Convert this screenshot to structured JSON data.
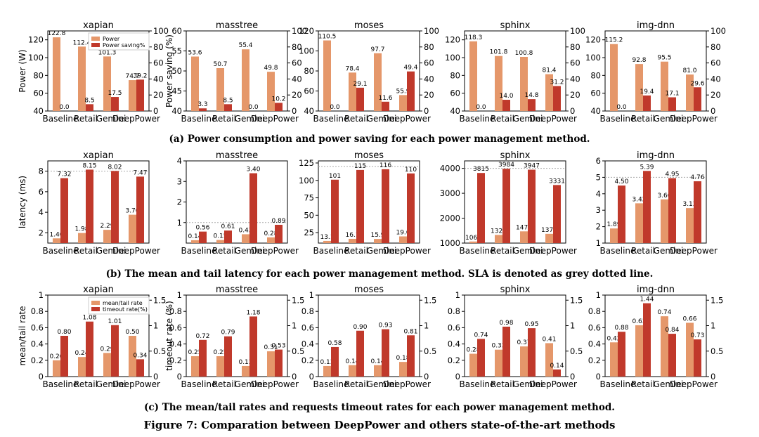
{
  "colors": {
    "light": "#e5976a",
    "dark": "#c0392b",
    "sla": "#aaaaaa",
    "axis": "#000000"
  },
  "captions": {
    "a": "(a) Power consumption and power saving for each power management method.",
    "b": "(b) The mean and tail latency for each power management method. SLA is denoted as grey dotted line.",
    "c": "(c) The mean/tail rates and requests timeout rates for each power management method.",
    "figure": "Figure 7: Comparation between DeepPower and others state-of-the-art methods"
  },
  "chart_data": [
    {
      "group": "a",
      "type": "bar",
      "y_label": "Power (W)",
      "y2_label": "Power saving (%)",
      "legend": [
        "Power",
        "Power saving%"
      ],
      "categories": [
        "Baseline",
        "Retail",
        "Gemini",
        "DeepPower"
      ],
      "panels": [
        {
          "title": "xapian",
          "ylim": [
            40,
            130
          ],
          "yticks": [
            40,
            60,
            80,
            100,
            120
          ],
          "y2lim": [
            0,
            100
          ],
          "y2ticks": [
            0,
            20,
            40,
            60,
            80,
            100
          ],
          "light": [
            122.8,
            112.4,
            101.3,
            74.7
          ],
          "dark": [
            0.0,
            8.5,
            17.5,
            39.2
          ],
          "light_labels": [
            "122.8",
            "112.4",
            "101.3",
            "74.7"
          ],
          "dark_labels": [
            "0.0",
            "8.5",
            "17.5",
            "39.2"
          ]
        },
        {
          "title": "masstree",
          "ylim": [
            40,
            60
          ],
          "yticks": [
            40,
            45,
            50,
            55,
            60
          ],
          "y2lim": [
            0,
            100
          ],
          "y2ticks": [
            0,
            20,
            40,
            60,
            80,
            100
          ],
          "light": [
            53.6,
            50.7,
            55.4,
            49.8
          ],
          "dark": [
            3.3,
            8.5,
            0.0,
            10.2
          ],
          "light_labels": [
            "53.6",
            "50.7",
            "55.4",
            "49.8"
          ],
          "dark_labels": [
            "3.3",
            "8.5",
            "0.0",
            "10.2"
          ]
        },
        {
          "title": "moses",
          "ylim": [
            40,
            120
          ],
          "yticks": [
            40,
            60,
            80,
            100,
            120
          ],
          "y2lim": [
            0,
            100
          ],
          "y2ticks": [
            0,
            20,
            40,
            60,
            80,
            100
          ],
          "light": [
            110.5,
            78.4,
            97.7,
            55.9
          ],
          "dark": [
            0.0,
            29.1,
            11.6,
            49.4
          ],
          "light_labels": [
            "110.5",
            "78.4",
            "97.7",
            "55.9"
          ],
          "dark_labels": [
            "0.0",
            "29.1",
            "11.6",
            "49.4"
          ]
        },
        {
          "title": "sphinx",
          "ylim": [
            40,
            130
          ],
          "yticks": [
            40,
            60,
            80,
            100,
            120
          ],
          "y2lim": [
            0,
            100
          ],
          "y2ticks": [
            0,
            20,
            40,
            60,
            80,
            100
          ],
          "light": [
            118.3,
            101.8,
            100.8,
            81.4
          ],
          "dark": [
            0.0,
            14.0,
            14.8,
            31.2
          ],
          "light_labels": [
            "118.3",
            "101.8",
            "100.8",
            "81.4"
          ],
          "dark_labels": [
            "0.0",
            "14.0",
            "14.8",
            "31.2"
          ]
        },
        {
          "title": "img-dnn",
          "ylim": [
            40,
            130
          ],
          "yticks": [
            40,
            60,
            80,
            100,
            120
          ],
          "y2lim": [
            0,
            100
          ],
          "y2ticks": [
            0,
            20,
            40,
            60,
            80,
            100
          ],
          "light": [
            115.2,
            92.8,
            95.5,
            81.0
          ],
          "dark": [
            0.0,
            19.4,
            17.1,
            29.6
          ],
          "light_labels": [
            "115.2",
            "92.8",
            "95.5",
            "81.0"
          ],
          "dark_labels": [
            "0.0",
            "19.4",
            "17.1",
            "29.6"
          ]
        }
      ]
    },
    {
      "group": "b",
      "type": "bar",
      "y_label": "latency (ms)",
      "categories": [
        "Baseline",
        "Retail",
        "Gemini",
        "DeepPower"
      ],
      "panels": [
        {
          "title": "xapian",
          "ylim": [
            1,
            9
          ],
          "yticks": [
            2,
            4,
            6,
            8
          ],
          "sla": 8,
          "light": [
            1.46,
            1.98,
            2.29,
            3.76
          ],
          "dark": [
            7.32,
            8.15,
            8.02,
            7.47
          ],
          "light_labels": [
            "1.46",
            "1.98",
            "2.29",
            "3.76"
          ],
          "dark_labels": [
            "7.32",
            "8.15",
            "8.02",
            "7.47"
          ]
        },
        {
          "title": "masstree",
          "ylim": [
            0,
            4
          ],
          "yticks": [
            1,
            2,
            3,
            4
          ],
          "sla": 1,
          "light": [
            0.14,
            0.15,
            0.43,
            0.28
          ],
          "dark": [
            0.56,
            0.61,
            3.4,
            0.89
          ],
          "light_labels": [
            "0.14",
            "0.15",
            "0.43",
            "0.28"
          ],
          "dark_labels": [
            "0.56",
            "0.61",
            "3.40",
            "0.89"
          ]
        },
        {
          "title": "moses",
          "ylim": [
            10,
            128
          ],
          "yticks": [
            25,
            50,
            75,
            100,
            125
          ],
          "sla": 120,
          "light": [
            13.1,
            16.1,
            15.9,
            19.6
          ],
          "dark": [
            101,
            115,
            116,
            110
          ],
          "light_labels": [
            "13.1",
            "16.1",
            "15.9",
            "19.6"
          ],
          "dark_labels": [
            "101",
            "115",
            "116",
            "110"
          ]
        },
        {
          "title": "sphinx",
          "ylim": [
            1000,
            4300
          ],
          "yticks": [
            1000,
            2000,
            3000,
            4000
          ],
          "sla": 4000,
          "light": [
            1063,
            1327,
            1471,
            1371
          ],
          "dark": [
            3815,
            3984,
            3947,
            3331
          ],
          "light_labels": [
            "1063",
            "1327",
            "1471",
            "1371"
          ],
          "dark_labels": [
            "3815",
            "3984",
            "3947",
            "3331"
          ]
        },
        {
          "title": "img-dnn",
          "ylim": [
            1,
            6
          ],
          "yticks": [
            1,
            2,
            3,
            4,
            5,
            6
          ],
          "sla": 5,
          "light": [
            1.89,
            3.42,
            3.66,
            3.13
          ],
          "dark": [
            4.5,
            5.39,
            4.95,
            4.76
          ],
          "light_labels": [
            "1.89",
            "3.42",
            "3.66",
            "3.13"
          ],
          "dark_labels": [
            "4.50",
            "5.39",
            "4.95",
            "4.76"
          ]
        }
      ]
    },
    {
      "group": "c",
      "type": "bar",
      "y_label": "mean/tail rate",
      "y2_label": "timeout rate (%)",
      "legend": [
        "mean/tail rate",
        "timeout rate(%)"
      ],
      "categories": [
        "Baseline",
        "Retail",
        "Gemini",
        "DeepPower"
      ],
      "panels": [
        {
          "title": "xapian",
          "ylim": [
            0,
            1.0
          ],
          "yticks": [
            0.0,
            0.2,
            0.4,
            0.6,
            0.8,
            1.0
          ],
          "y2lim": [
            0,
            1.6
          ],
          "y2ticks": [
            0.0,
            0.5,
            1.0,
            1.5
          ],
          "light": [
            0.2,
            0.24,
            0.29,
            0.5
          ],
          "dark": [
            0.8,
            1.08,
            1.01,
            0.34
          ],
          "light_labels": [
            "0.20",
            "0.24",
            "0.29",
            "0.50"
          ],
          "dark_labels": [
            "0.80",
            "1.08",
            "1.01",
            "0.34"
          ]
        },
        {
          "title": "masstree",
          "ylim": [
            0,
            1.0
          ],
          "yticks": [
            0.0,
            0.2,
            0.4,
            0.6,
            0.8,
            1.0
          ],
          "y2lim": [
            0,
            1.6
          ],
          "y2ticks": [
            0.0,
            0.5,
            1.0,
            1.5
          ],
          "light": [
            0.25,
            0.25,
            0.13,
            0.31
          ],
          "dark": [
            0.72,
            0.79,
            1.18,
            0.53
          ],
          "light_labels": [
            "0.25",
            "0.25",
            "0.13",
            "0.31"
          ],
          "dark_labels": [
            "0.72",
            "0.79",
            "1.18",
            "0.53"
          ]
        },
        {
          "title": "moses",
          "ylim": [
            0,
            1.0
          ],
          "yticks": [
            0.0,
            0.2,
            0.4,
            0.6,
            0.8,
            1.0
          ],
          "y2lim": [
            0,
            1.6
          ],
          "y2ticks": [
            0.0,
            0.5,
            1.0,
            1.5
          ],
          "light": [
            0.13,
            0.14,
            0.14,
            0.18
          ],
          "dark": [
            0.58,
            0.9,
            0.93,
            0.81
          ],
          "light_labels": [
            "0.13",
            "0.14",
            "0.14",
            "0.18"
          ],
          "dark_labels": [
            "0.58",
            "0.90",
            "0.93",
            "0.81"
          ]
        },
        {
          "title": "sphinx",
          "ylim": [
            0,
            1.0
          ],
          "yticks": [
            0.0,
            0.2,
            0.4,
            0.6,
            0.8,
            1.0
          ],
          "y2lim": [
            0,
            1.6
          ],
          "y2ticks": [
            0.0,
            0.5,
            1.0,
            1.5
          ],
          "light": [
            0.28,
            0.33,
            0.37,
            0.41
          ],
          "dark": [
            0.74,
            0.98,
            0.95,
            0.14
          ],
          "light_labels": [
            "0.28",
            "0.33",
            "0.37",
            "0.41"
          ],
          "dark_labels": [
            "0.74",
            "0.98",
            "0.95",
            "0.14"
          ]
        },
        {
          "title": "img-dnn",
          "ylim": [
            0,
            1.0
          ],
          "yticks": [
            0.0,
            0.2,
            0.4,
            0.6,
            0.8,
            1.0
          ],
          "y2lim": [
            0,
            1.6
          ],
          "y2ticks": [
            0.0,
            0.5,
            1.0,
            1.5
          ],
          "light": [
            0.42,
            0.63,
            0.74,
            0.66
          ],
          "dark": [
            0.88,
            1.44,
            0.84,
            0.73
          ],
          "light_labels": [
            "0.42",
            "0.63",
            "0.74",
            "0.66"
          ],
          "dark_labels": [
            "0.88",
            "1.44",
            "0.84",
            "0.73"
          ]
        }
      ]
    }
  ]
}
